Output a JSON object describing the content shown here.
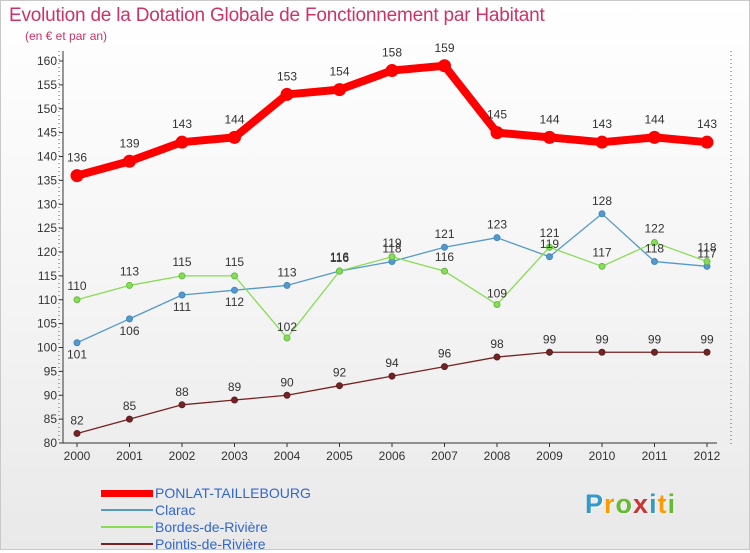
{
  "title": "Evolution de la Dotation Globale de Fonctionnement par Habitant",
  "subtitle": "(en € et par an)",
  "logo": {
    "letters": [
      "P",
      "r",
      "o",
      "x",
      "i",
      "t",
      "i"
    ],
    "colors": [
      "#3399cc",
      "#ff9900",
      "#66bb33",
      "#cc3333",
      "#3399cc",
      "#ff9900",
      "#66bb33"
    ]
  },
  "chart_data": {
    "type": "line",
    "title": "Evolution de la Dotation Globale de Fonctionnement par Habitant",
    "subtitle": "(en € et par an)",
    "xlabel": "",
    "ylabel": "",
    "ylim": [
      80,
      160
    ],
    "y_ticks": [
      80,
      85,
      90,
      95,
      100,
      105,
      110,
      115,
      120,
      125,
      130,
      135,
      140,
      145,
      150,
      155,
      160
    ],
    "grid": false,
    "categories": [
      "2000",
      "2001",
      "2002",
      "2003",
      "2004",
      "2005",
      "2006",
      "2007",
      "2008",
      "2009",
      "2010",
      "2011",
      "2012"
    ],
    "series": [
      {
        "name": "PONLAT-TAILLEBOURG",
        "color": "#ff0000",
        "values": [
          136,
          139,
          143,
          144,
          153,
          154,
          158,
          159,
          145,
          144,
          143,
          144,
          143
        ],
        "labels": [
          "136",
          "139",
          "143",
          "144",
          "153",
          "154",
          "158",
          "159",
          "145",
          "144",
          "143",
          "144",
          "143"
        ]
      },
      {
        "name": "Clarac",
        "color": "#5599cc",
        "values": [
          101,
          106,
          111,
          112,
          113,
          116,
          118,
          121,
          123,
          119,
          128,
          118,
          117
        ],
        "labels": [
          "101",
          "106",
          "111",
          "112",
          "113",
          "116",
          "118",
          "121",
          "123",
          "119",
          "128",
          "118",
          "117"
        ]
      },
      {
        "name": "Bordes-de-Rivière",
        "color": "#88dd55",
        "values": [
          110,
          113,
          115,
          115,
          102,
          116,
          119,
          116,
          109,
          121,
          117,
          122,
          118
        ],
        "labels": [
          "110",
          "113",
          "115",
          "115",
          "102",
          "116",
          "119",
          "116",
          "109",
          "121",
          "117",
          "122",
          "118"
        ]
      },
      {
        "name": "Pointis-de-Rivière",
        "color": "#772222",
        "values": [
          82,
          85,
          88,
          89,
          90,
          92,
          94,
          96,
          98,
          99,
          99,
          99,
          99
        ],
        "labels": [
          "82",
          "85",
          "88",
          "89",
          "90",
          "92",
          "94",
          "96",
          "98",
          "99",
          "99",
          "99",
          "99"
        ]
      }
    ],
    "legend": "bottom-left"
  }
}
